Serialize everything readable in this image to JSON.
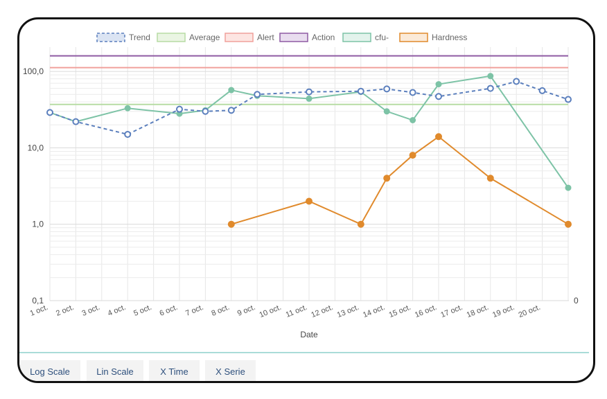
{
  "chart_data": {
    "type": "line",
    "xlabel": "Date",
    "y_scale": "log",
    "ylim": [
      0.1,
      180
    ],
    "y_ticks": [
      "100,0",
      "10,0",
      "1,0",
      "0,1"
    ],
    "right_ticks": [
      "0"
    ],
    "grid": true,
    "legend_placement": "top",
    "x_ticks": [
      "1 oct.",
      "2 oct.",
      "3 oct.",
      "4 oct.",
      "5 oct.",
      "6 oct.",
      "7 oct.",
      "8 oct.",
      "9 oct.",
      "10 oct.",
      "11 oct.",
      "12 oct.",
      "13 oct.",
      "14 oct.",
      "15 oct.",
      "16 oct.",
      "17 oct.",
      "18 oct.",
      "19 oct.",
      "20 oct."
    ],
    "series": [
      {
        "name": "Trend",
        "color": "#5b7fbd",
        "style": "dashed",
        "points": [
          [
            "1 oct.",
            29
          ],
          [
            "2 oct.",
            22
          ],
          [
            "4 oct.",
            15
          ],
          [
            "6 oct.",
            32
          ],
          [
            "7 oct.",
            30
          ],
          [
            "8 oct.",
            31
          ],
          [
            "9 oct.",
            50
          ],
          [
            "11 oct.",
            54
          ],
          [
            "13 oct.",
            55
          ],
          [
            "14 oct.",
            59
          ],
          [
            "15 oct.",
            53
          ],
          [
            "16 oct.",
            47
          ],
          [
            "18 oct.",
            60
          ],
          [
            "19 oct.",
            74
          ],
          [
            "20 oct.",
            56
          ],
          [
            "21 oct.",
            43
          ]
        ]
      },
      {
        "name": "Average",
        "color": "#b7dca4",
        "style": "solid",
        "points": [
          [
            "1 oct.",
            37
          ],
          [
            "21 oct.",
            37
          ]
        ]
      },
      {
        "name": "Alert",
        "color": "#f0a09b",
        "style": "solid",
        "points": [
          [
            "1 oct.",
            112
          ],
          [
            "21 oct.",
            112
          ]
        ]
      },
      {
        "name": "Action",
        "color": "#8e5aa3",
        "style": "solid",
        "points": [
          [
            "1 oct.",
            160
          ],
          [
            "21 oct.",
            160
          ]
        ]
      },
      {
        "name": "cfu-",
        "color": "#7dc3a6",
        "style": "solid",
        "points": [
          [
            "1 oct.",
            29
          ],
          [
            "2 oct.",
            22
          ],
          [
            "4 oct.",
            33
          ],
          [
            "6 oct.",
            28
          ],
          [
            "7 oct.",
            31
          ],
          [
            "8 oct.",
            57
          ],
          [
            "9 oct.",
            48
          ],
          [
            "11 oct.",
            44
          ],
          [
            "13 oct.",
            54
          ],
          [
            "14 oct.",
            30
          ],
          [
            "15 oct.",
            23
          ],
          [
            "16 oct.",
            68
          ],
          [
            "18 oct.",
            87
          ],
          [
            "21 oct.",
            3
          ]
        ]
      },
      {
        "name": "Hardness",
        "color": "#e08a2c",
        "style": "solid",
        "points": [
          [
            "8 oct.",
            1.0
          ],
          [
            "11 oct.",
            2.0
          ],
          [
            "13 oct.",
            1.0
          ],
          [
            "14 oct.",
            4.0
          ],
          [
            "15 oct.",
            8.0
          ],
          [
            "16 oct.",
            14.0
          ],
          [
            "18 oct.",
            4.0
          ],
          [
            "21 oct.",
            1.0
          ]
        ]
      }
    ]
  },
  "toolbar": {
    "buttons": [
      "Log Scale",
      "Lin Scale",
      "X Time",
      "X Serie"
    ]
  }
}
